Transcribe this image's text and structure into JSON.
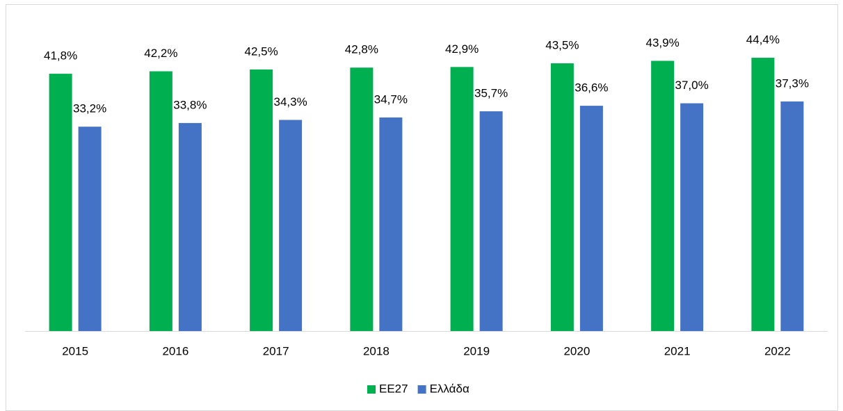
{
  "chart_data": {
    "type": "bar",
    "categories": [
      "2015",
      "2016",
      "2017",
      "2018",
      "2019",
      "2020",
      "2021",
      "2022"
    ],
    "series": [
      {
        "name": "ΕΕ27",
        "color": "#00b050",
        "values": [
          41.8,
          42.2,
          42.5,
          42.8,
          42.9,
          43.5,
          43.9,
          44.4
        ],
        "value_labels": [
          "41,8%",
          "42,2%",
          "42,5%",
          "42,8%",
          "42,9%",
          "43,5%",
          "43,9%",
          "44,4%"
        ]
      },
      {
        "name": "Ελλάδα",
        "color": "#4472c4",
        "values": [
          33.2,
          33.8,
          34.3,
          34.7,
          35.7,
          36.6,
          37.0,
          37.3
        ],
        "value_labels": [
          "33,2%",
          "33,8%",
          "34,3%",
          "34,7%",
          "35,7%",
          "36,6%",
          "37,0%",
          "37,3%"
        ]
      }
    ],
    "ylim": [
      0,
      50
    ],
    "legend": "bottom"
  }
}
